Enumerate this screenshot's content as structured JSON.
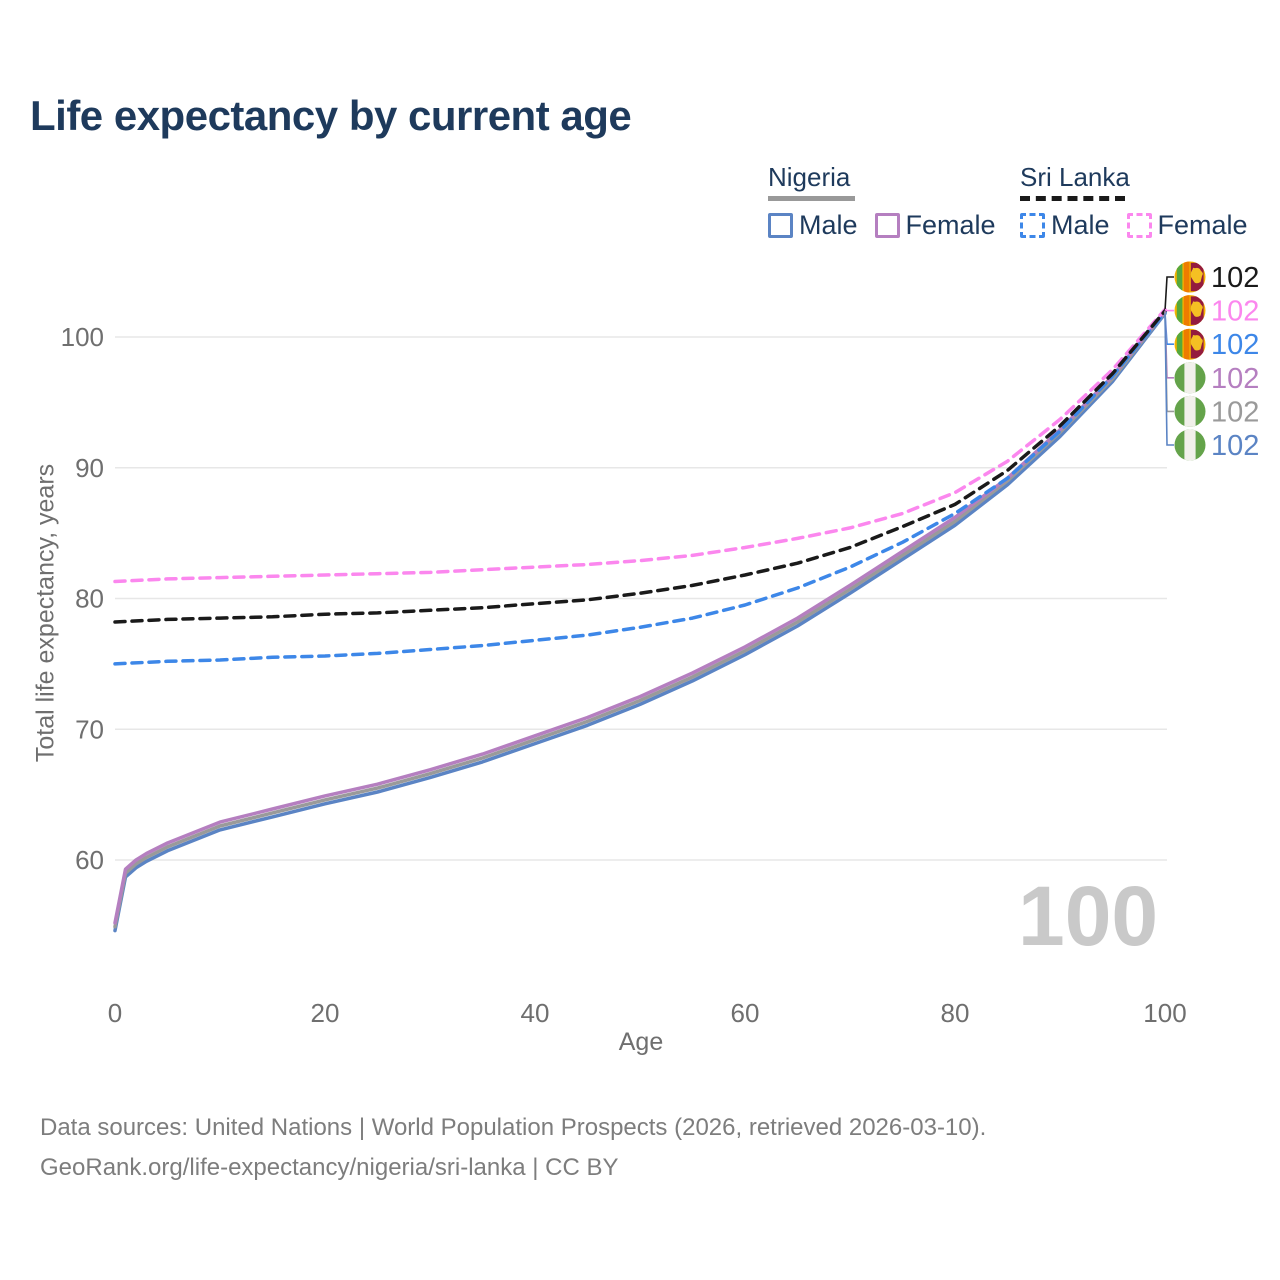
{
  "title": "Life expectancy by current age",
  "legend": {
    "groups": [
      {
        "label": "Nigeria",
        "line_style": "solid",
        "underline_color": "#999999",
        "items": [
          {
            "label": "Male",
            "color": "#5b84c4",
            "dashed": false
          },
          {
            "label": "Female",
            "color": "#b57fc0",
            "dashed": false
          }
        ]
      },
      {
        "label": "Sri Lanka",
        "line_style": "dashed",
        "underline_color": "#1a1a1a",
        "items": [
          {
            "label": "Male",
            "color": "#3d87e8",
            "dashed": true
          },
          {
            "label": "Female",
            "color": "#fb87ee",
            "dashed": true
          }
        ]
      }
    ]
  },
  "age_watermark": "100",
  "footer": {
    "line1": "Data sources: United Nations | World Population Prospects (2026, retrieved 2026-03-10).",
    "line2": "GeoRank.org/life-expectancy/nigeria/sri-lanka | CC BY"
  },
  "chart_data": {
    "type": "line",
    "title": "Life expectancy by current age",
    "xlabel": "Age",
    "ylabel": "Total life expectancy, years",
    "xlim": [
      0,
      100
    ],
    "ylim": [
      54,
      104
    ],
    "x_ticks": [
      0,
      20,
      40,
      60,
      80,
      100
    ],
    "y_ticks": [
      60,
      70,
      80,
      90,
      100
    ],
    "grid": "horizontal",
    "legend_position": "top-right",
    "axis_color": "#6f6f6f",
    "gridline_color": "#e7e7e7",
    "series": [
      {
        "id": "sri-lanka-total",
        "name": "Sri Lanka (total)",
        "country": "lk",
        "flag_icon": "sri-lanka-flag-icon",
        "color": "#1a1a1a",
        "dashed": true,
        "end_label": "102",
        "points": [
          [
            0,
            78.2
          ],
          [
            5,
            78.4
          ],
          [
            10,
            78.5
          ],
          [
            15,
            78.6
          ],
          [
            20,
            78.8
          ],
          [
            25,
            78.9
          ],
          [
            30,
            79.1
          ],
          [
            35,
            79.3
          ],
          [
            40,
            79.6
          ],
          [
            45,
            79.9
          ],
          [
            50,
            80.4
          ],
          [
            55,
            81.0
          ],
          [
            60,
            81.8
          ],
          [
            65,
            82.7
          ],
          [
            70,
            83.9
          ],
          [
            75,
            85.5
          ],
          [
            80,
            87.2
          ],
          [
            85,
            89.8
          ],
          [
            90,
            93.2
          ],
          [
            95,
            97.2
          ],
          [
            100,
            102.0
          ]
        ]
      },
      {
        "id": "sri-lanka-female",
        "name": "Sri Lanka Female",
        "country": "lk",
        "flag_icon": "sri-lanka-flag-icon",
        "color": "#fb87ee",
        "dashed": true,
        "end_label": "102",
        "points": [
          [
            0,
            81.3
          ],
          [
            5,
            81.5
          ],
          [
            10,
            81.6
          ],
          [
            15,
            81.7
          ],
          [
            20,
            81.8
          ],
          [
            25,
            81.9
          ],
          [
            30,
            82.0
          ],
          [
            35,
            82.2
          ],
          [
            40,
            82.4
          ],
          [
            45,
            82.6
          ],
          [
            50,
            82.9
          ],
          [
            55,
            83.3
          ],
          [
            60,
            83.9
          ],
          [
            65,
            84.6
          ],
          [
            70,
            85.4
          ],
          [
            75,
            86.5
          ],
          [
            80,
            88.1
          ],
          [
            85,
            90.5
          ],
          [
            90,
            93.7
          ],
          [
            95,
            97.5
          ],
          [
            100,
            102.1
          ]
        ]
      },
      {
        "id": "sri-lanka-male",
        "name": "Sri Lanka Male",
        "country": "lk",
        "flag_icon": "sri-lanka-flag-icon",
        "color": "#3d87e8",
        "dashed": true,
        "end_label": "102",
        "points": [
          [
            0,
            75.0
          ],
          [
            5,
            75.2
          ],
          [
            10,
            75.3
          ],
          [
            15,
            75.5
          ],
          [
            20,
            75.6
          ],
          [
            25,
            75.8
          ],
          [
            30,
            76.1
          ],
          [
            35,
            76.4
          ],
          [
            40,
            76.8
          ],
          [
            45,
            77.2
          ],
          [
            50,
            77.8
          ],
          [
            55,
            78.5
          ],
          [
            60,
            79.5
          ],
          [
            65,
            80.8
          ],
          [
            70,
            82.4
          ],
          [
            75,
            84.3
          ],
          [
            80,
            86.5
          ],
          [
            85,
            89.2
          ],
          [
            90,
            92.8
          ],
          [
            95,
            97.0
          ],
          [
            100,
            101.9
          ]
        ]
      },
      {
        "id": "nigeria-female",
        "name": "Nigeria Female",
        "country": "ng",
        "flag_icon": "nigeria-flag-icon",
        "color": "#b57fc0",
        "dashed": false,
        "end_label": "102",
        "points": [
          [
            0,
            55.2
          ],
          [
            1,
            59.3
          ],
          [
            2,
            60.0
          ],
          [
            3,
            60.5
          ],
          [
            5,
            61.3
          ],
          [
            10,
            62.9
          ],
          [
            15,
            63.9
          ],
          [
            20,
            64.9
          ],
          [
            25,
            65.8
          ],
          [
            30,
            66.9
          ],
          [
            35,
            68.1
          ],
          [
            40,
            69.5
          ],
          [
            45,
            70.9
          ],
          [
            50,
            72.5
          ],
          [
            55,
            74.3
          ],
          [
            60,
            76.3
          ],
          [
            65,
            78.5
          ],
          [
            70,
            81.0
          ],
          [
            75,
            83.6
          ],
          [
            80,
            86.2
          ],
          [
            85,
            89.2
          ],
          [
            90,
            92.9
          ],
          [
            95,
            97.0
          ],
          [
            100,
            102.0
          ]
        ]
      },
      {
        "id": "nigeria-total",
        "name": "Nigeria (total)",
        "country": "ng",
        "flag_icon": "nigeria-flag-icon",
        "color": "#9a9a9a",
        "dashed": false,
        "end_label": "102",
        "points": [
          [
            0,
            54.9
          ],
          [
            1,
            59.0
          ],
          [
            2,
            59.7
          ],
          [
            3,
            60.2
          ],
          [
            5,
            61.0
          ],
          [
            10,
            62.6
          ],
          [
            15,
            63.6
          ],
          [
            20,
            64.6
          ],
          [
            25,
            65.5
          ],
          [
            30,
            66.6
          ],
          [
            35,
            67.8
          ],
          [
            40,
            69.2
          ],
          [
            45,
            70.6
          ],
          [
            50,
            72.2
          ],
          [
            55,
            74.0
          ],
          [
            60,
            76.0
          ],
          [
            65,
            78.2
          ],
          [
            70,
            80.7
          ],
          [
            75,
            83.3
          ],
          [
            80,
            85.9
          ],
          [
            85,
            89.0
          ],
          [
            90,
            92.7
          ],
          [
            95,
            96.8
          ],
          [
            100,
            101.9
          ]
        ]
      },
      {
        "id": "nigeria-male",
        "name": "Nigeria Male",
        "country": "ng",
        "flag_icon": "nigeria-flag-icon",
        "color": "#5b84c4",
        "dashed": false,
        "end_label": "102",
        "points": [
          [
            0,
            54.6
          ],
          [
            1,
            58.7
          ],
          [
            2,
            59.4
          ],
          [
            3,
            59.9
          ],
          [
            5,
            60.7
          ],
          [
            10,
            62.3
          ],
          [
            15,
            63.3
          ],
          [
            20,
            64.3
          ],
          [
            25,
            65.2
          ],
          [
            30,
            66.3
          ],
          [
            35,
            67.5
          ],
          [
            40,
            68.9
          ],
          [
            45,
            70.3
          ],
          [
            50,
            71.9
          ],
          [
            55,
            73.7
          ],
          [
            60,
            75.7
          ],
          [
            65,
            77.9
          ],
          [
            70,
            80.4
          ],
          [
            75,
            83.0
          ],
          [
            80,
            85.6
          ],
          [
            85,
            88.7
          ],
          [
            90,
            92.4
          ],
          [
            95,
            96.6
          ],
          [
            100,
            101.8
          ]
        ]
      }
    ]
  }
}
